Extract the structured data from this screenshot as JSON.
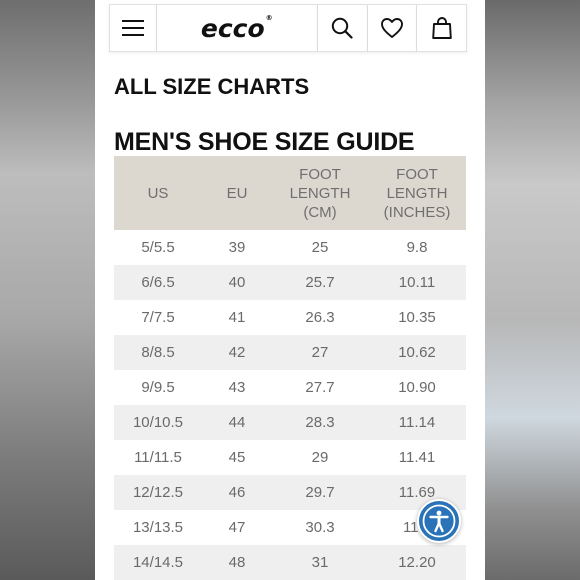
{
  "header": {
    "logo": "ecco",
    "logo_mark": "®",
    "menu_icon": "hamburger-menu-icon",
    "search_icon": "search-icon",
    "wishlist_icon": "heart-icon",
    "bag_icon": "shopping-bag-icon"
  },
  "page": {
    "heading": "ALL SIZE CHARTS",
    "guide_title": "MEN'S SHOE SIZE GUIDE"
  },
  "table": {
    "columns": [
      {
        "line1": "US",
        "line2": "",
        "line3": ""
      },
      {
        "line1": "EU",
        "line2": "",
        "line3": ""
      },
      {
        "line1": "FOOT",
        "line2": "LENGTH",
        "line3": "(CM)"
      },
      {
        "line1": "FOOT",
        "line2": "LENGTH",
        "line3": "(INCHES)"
      }
    ],
    "rows": [
      [
        "5/5.5",
        "39",
        "25",
        "9.8"
      ],
      [
        "6/6.5",
        "40",
        "25.7",
        "10.11"
      ],
      [
        "7/7.5",
        "41",
        "26.3",
        "10.35"
      ],
      [
        "8/8.5",
        "42",
        "27",
        "10.62"
      ],
      [
        "9/9.5",
        "43",
        "27.7",
        "10.90"
      ],
      [
        "10/10.5",
        "44",
        "28.3",
        "11.14"
      ],
      [
        "11/11.5",
        "45",
        "29",
        "11.41"
      ],
      [
        "12/12.5",
        "46",
        "29.7",
        "11.69"
      ],
      [
        "13/13.5",
        "47",
        "30.3",
        "11.9"
      ],
      [
        "14/14.5",
        "48",
        "31",
        "12.20"
      ]
    ]
  },
  "accessibility_icon": "accessibility-icon",
  "colors": {
    "header_bg": "#dcd8d0",
    "stripe": "#efefef",
    "accessibility_button": "#2a73b8"
  }
}
